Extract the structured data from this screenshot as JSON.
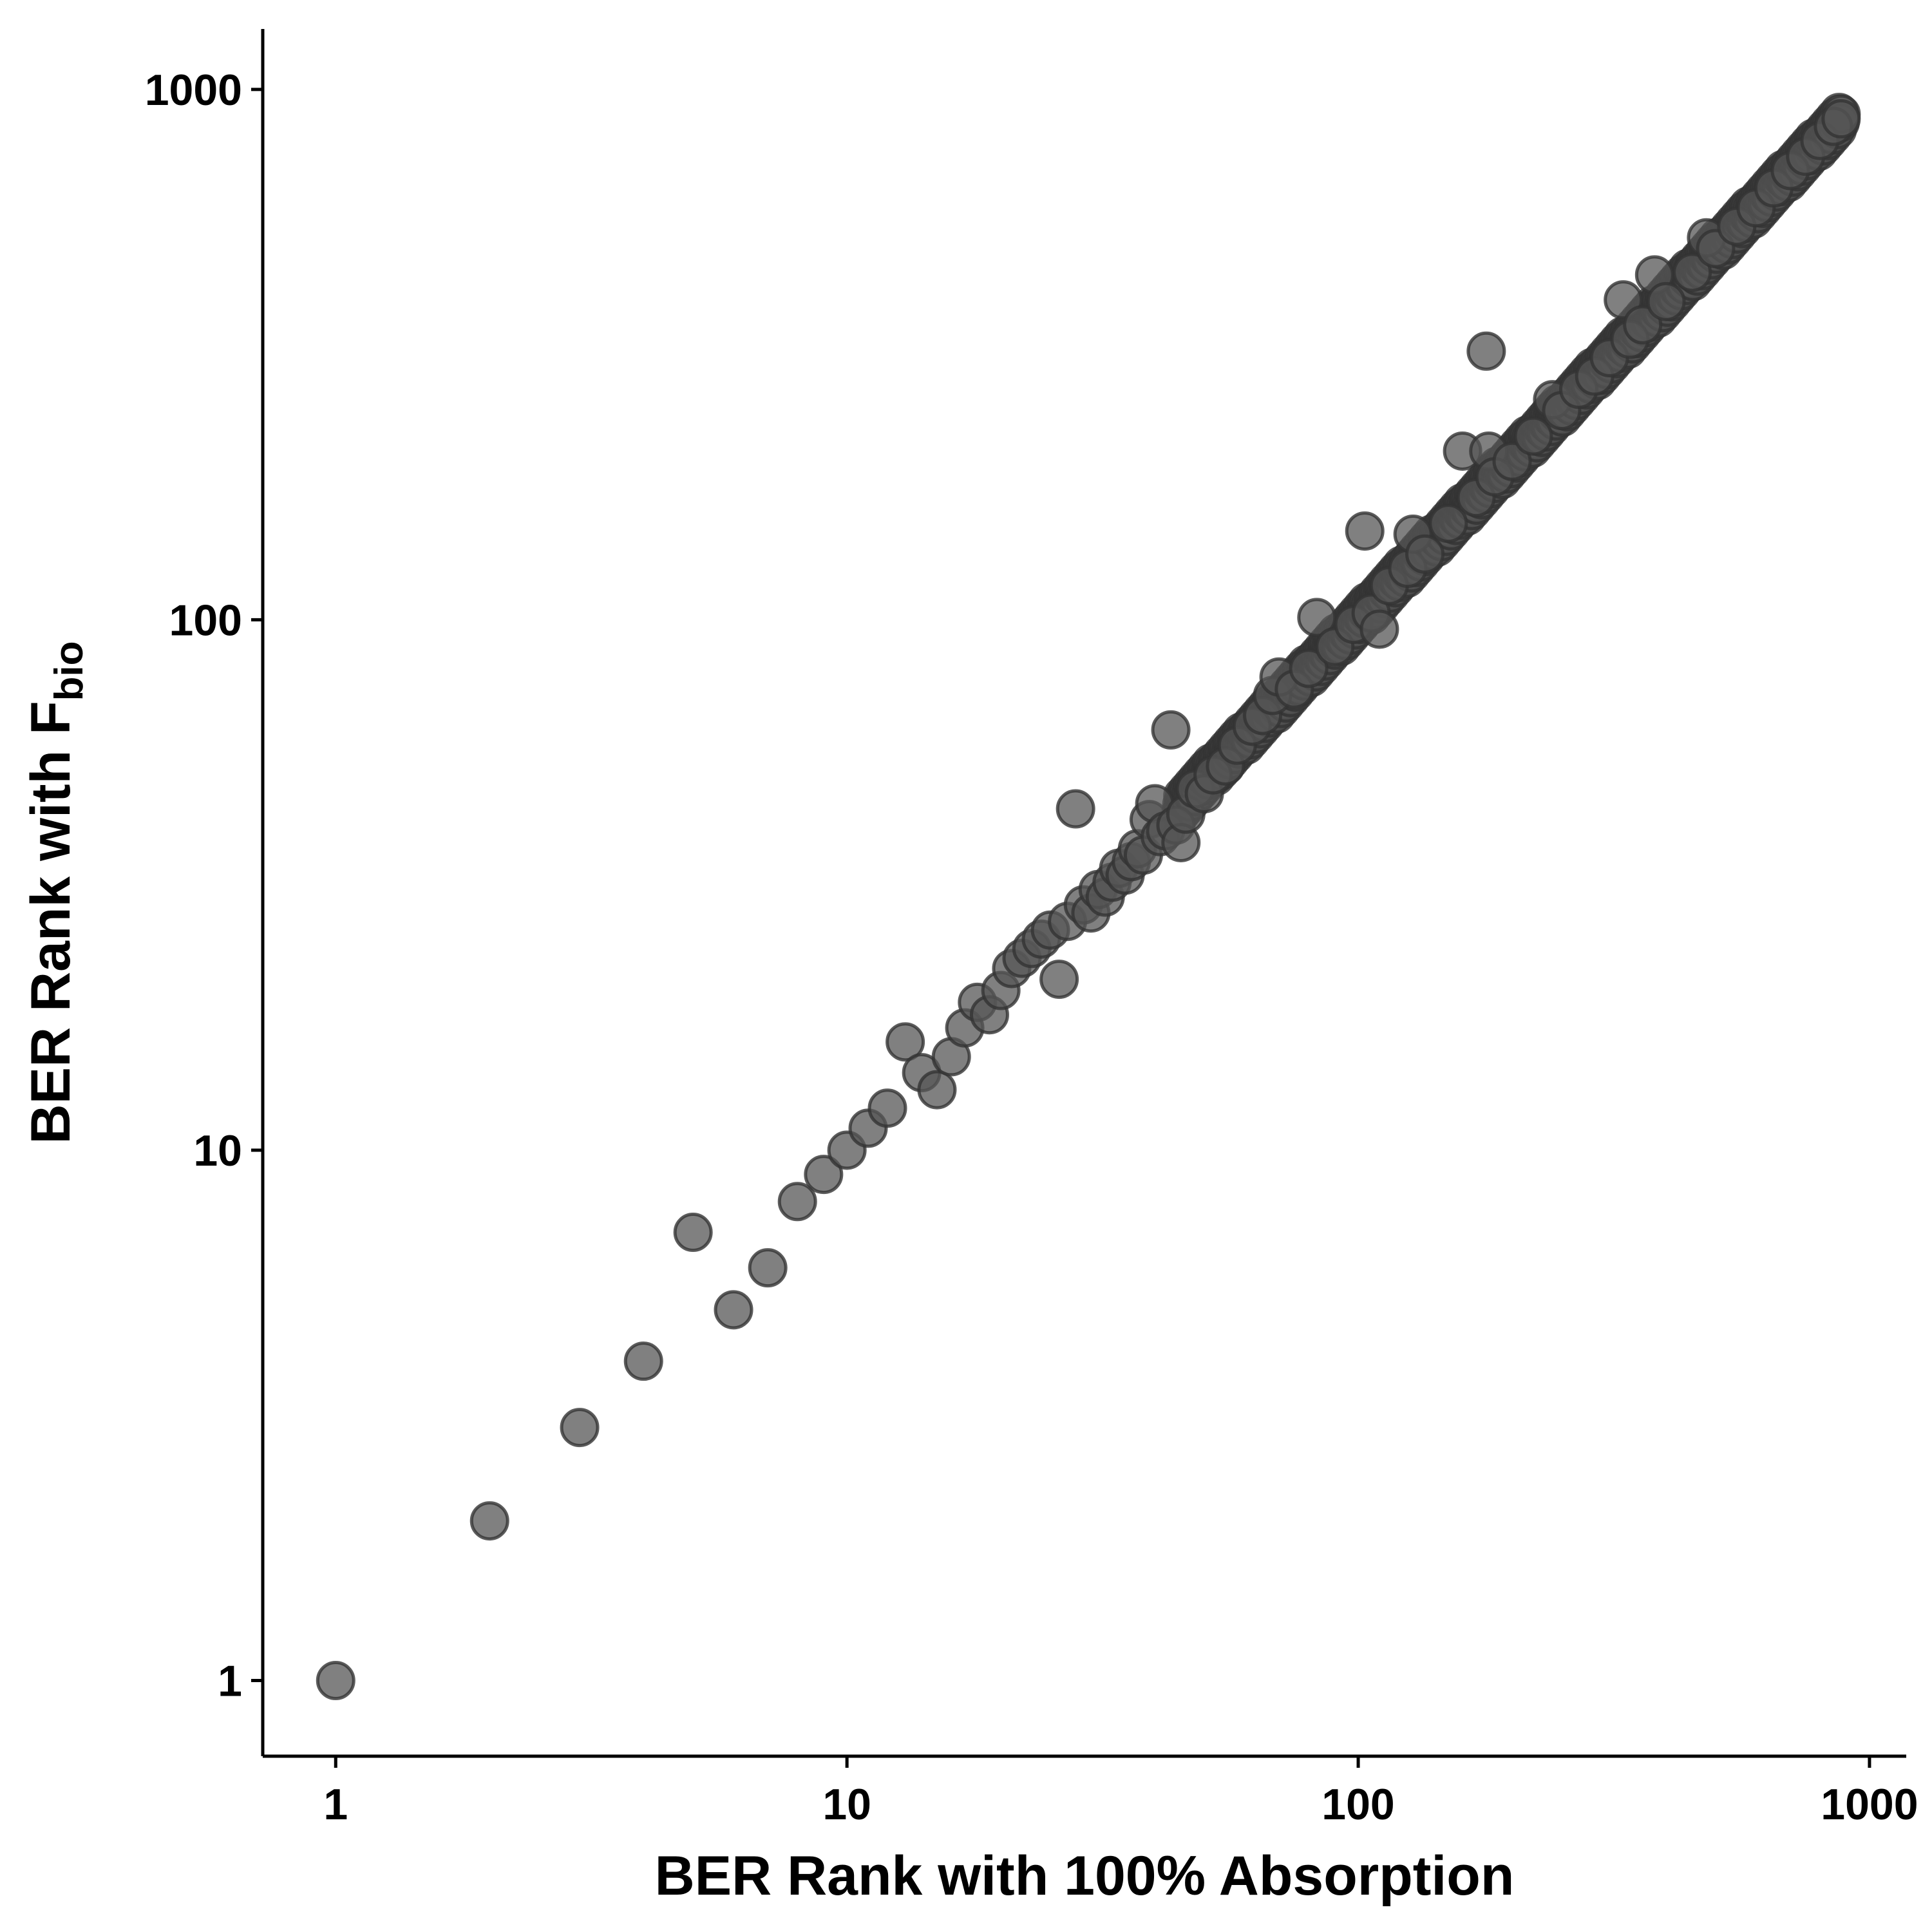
{
  "chart_data": {
    "type": "scatter",
    "title": "",
    "xlabel": "BER Rank with 100% Absorption",
    "ylabel": {
      "main": "BER Rank with F",
      "subscript": "bio"
    },
    "x_scale": "log10",
    "y_scale": "log10",
    "xlim": [
      0.72,
      1180
    ],
    "ylim": [
      0.72,
      1300
    ],
    "x_ticks": [
      1,
      10,
      100,
      1000
    ],
    "x_tick_labels": [
      "1",
      "10",
      "100",
      "1000"
    ],
    "y_ticks": [
      1,
      10,
      100,
      1000
    ],
    "y_tick_labels": [
      "1",
      "10",
      "100",
      "1000"
    ],
    "grid": false,
    "legend": "none",
    "point_color": "#555555",
    "point_alpha": 0.75,
    "main_trend": "points lie close to the line y = x for ranks 45 to 880",
    "points": [
      {
        "x": 1,
        "y": 1
      },
      {
        "x": 2,
        "y": 2
      },
      {
        "x": 3,
        "y": 3
      },
      {
        "x": 4,
        "y": 4
      },
      {
        "x": 5,
        "y": 7
      },
      {
        "x": 6,
        "y": 5
      },
      {
        "x": 7,
        "y": 6
      },
      {
        "x": 8,
        "y": 8
      },
      {
        "x": 9,
        "y": 9
      },
      {
        "x": 10,
        "y": 10
      },
      {
        "x": 11,
        "y": 11
      },
      {
        "x": 12,
        "y": 12
      },
      {
        "x": 13,
        "y": 16
      },
      {
        "x": 14,
        "y": 14
      },
      {
        "x": 15,
        "y": 13
      },
      {
        "x": 16,
        "y": 15
      },
      {
        "x": 17,
        "y": 17
      },
      {
        "x": 18,
        "y": 19
      },
      {
        "x": 19,
        "y": 18
      },
      {
        "x": 20,
        "y": 20
      },
      {
        "x": 21,
        "y": 22
      },
      {
        "x": 22,
        "y": 23
      },
      {
        "x": 23,
        "y": 24
      },
      {
        "x": 24,
        "y": 25
      },
      {
        "x": 25,
        "y": 26
      },
      {
        "x": 26,
        "y": 21
      },
      {
        "x": 27,
        "y": 27
      },
      {
        "x": 28,
        "y": 44
      },
      {
        "x": 29,
        "y": 29
      },
      {
        "x": 30,
        "y": 28
      },
      {
        "x": 31,
        "y": 31
      },
      {
        "x": 32,
        "y": 30
      },
      {
        "x": 33,
        "y": 32
      },
      {
        "x": 34,
        "y": 34
      },
      {
        "x": 35,
        "y": 33
      },
      {
        "x": 36,
        "y": 35
      },
      {
        "x": 37,
        "y": 37
      },
      {
        "x": 38,
        "y": 36
      },
      {
        "x": 39,
        "y": 42
      },
      {
        "x": 40,
        "y": 45
      },
      {
        "x": 41,
        "y": 39
      },
      {
        "x": 42,
        "y": 40
      },
      {
        "x": 43,
        "y": 62
      },
      {
        "x": 44,
        "y": 41
      },
      {
        "x": 45,
        "y": 38
      },
      {
        "x": 46,
        "y": 43
      },
      {
        "x": 48,
        "y": 48
      },
      {
        "x": 50,
        "y": 47
      },
      {
        "x": 52,
        "y": 51
      },
      {
        "x": 55,
        "y": 53
      },
      {
        "x": 58,
        "y": 58
      },
      {
        "x": 62,
        "y": 63
      },
      {
        "x": 65,
        "y": 66
      },
      {
        "x": 68,
        "y": 72
      },
      {
        "x": 70,
        "y": 78
      },
      {
        "x": 75,
        "y": 74
      },
      {
        "x": 80,
        "y": 81
      },
      {
        "x": 83,
        "y": 101
      },
      {
        "x": 90,
        "y": 89
      },
      {
        "x": 98,
        "y": 98
      },
      {
        "x": 103,
        "y": 147
      },
      {
        "x": 106,
        "y": 103
      },
      {
        "x": 110,
        "y": 96
      },
      {
        "x": 115,
        "y": 116
      },
      {
        "x": 125,
        "y": 125
      },
      {
        "x": 128,
        "y": 145
      },
      {
        "x": 135,
        "y": 133
      },
      {
        "x": 150,
        "y": 152
      },
      {
        "x": 160,
        "y": 208
      },
      {
        "x": 170,
        "y": 170
      },
      {
        "x": 178,
        "y": 321
      },
      {
        "x": 180,
        "y": 208
      },
      {
        "x": 185,
        "y": 186
      },
      {
        "x": 200,
        "y": 199
      },
      {
        "x": 220,
        "y": 222
      },
      {
        "x": 240,
        "y": 260
      },
      {
        "x": 250,
        "y": 248
      },
      {
        "x": 270,
        "y": 272
      },
      {
        "x": 290,
        "y": 288
      },
      {
        "x": 310,
        "y": 312
      },
      {
        "x": 330,
        "y": 401
      },
      {
        "x": 340,
        "y": 338
      },
      {
        "x": 360,
        "y": 360
      },
      {
        "x": 380,
        "y": 447
      },
      {
        "x": 400,
        "y": 398
      },
      {
        "x": 450,
        "y": 452
      },
      {
        "x": 480,
        "y": 525
      },
      {
        "x": 500,
        "y": 501
      },
      {
        "x": 550,
        "y": 552
      },
      {
        "x": 600,
        "y": 598
      },
      {
        "x": 650,
        "y": 652
      },
      {
        "x": 700,
        "y": 703
      },
      {
        "x": 750,
        "y": 748
      },
      {
        "x": 800,
        "y": 801
      },
      {
        "x": 850,
        "y": 852
      },
      {
        "x": 880,
        "y": 880
      }
    ]
  }
}
